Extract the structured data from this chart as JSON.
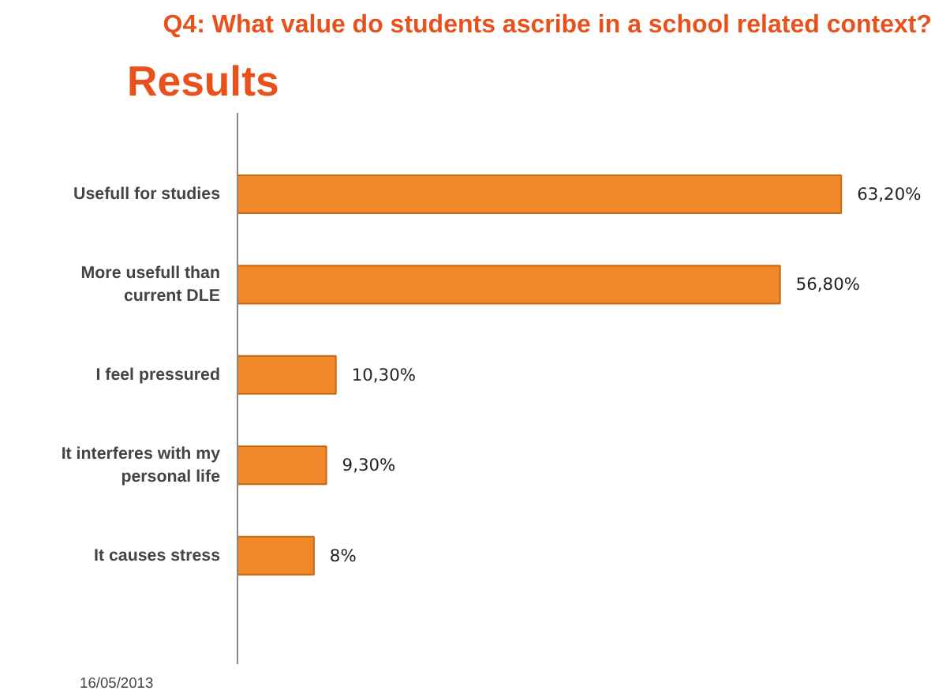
{
  "chart_data": {
    "type": "bar",
    "orientation": "horizontal",
    "title": "Results",
    "subtitle": "Q4: What value do students ascribe in a school related context?",
    "categories": [
      "Usefull for studies",
      "More usefull than\ncurrent DLE",
      "I feel pressured",
      "It interferes with my\npersonal life",
      "It causes stress"
    ],
    "values": [
      63.2,
      56.8,
      10.3,
      9.3,
      8
    ],
    "value_labels": [
      "63,20%",
      "56,80%",
      "10,30%",
      "9,30%",
      "8%"
    ],
    "color": "#f0882a",
    "tick_labels": "y",
    "grid": false,
    "annotations": [
      "16/05/2013"
    ]
  }
}
